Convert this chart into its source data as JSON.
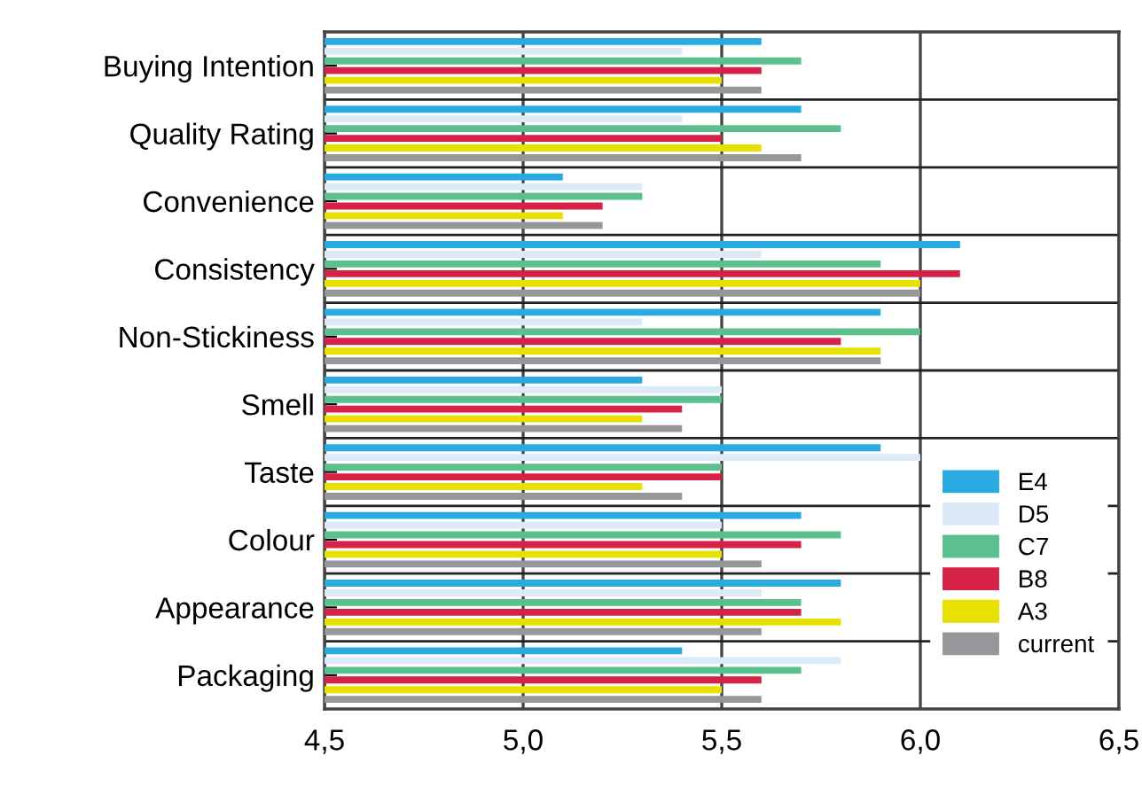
{
  "chart_data": {
    "type": "bar",
    "orientation": "horizontal",
    "categories": [
      "Buying Intention",
      "Quality Rating",
      "Convenience",
      "Consistency",
      "Non-Stickiness",
      "Smell",
      "Taste",
      "Colour",
      "Appearance",
      "Packaging"
    ],
    "series": [
      {
        "name": "E4",
        "color": "#29abe2",
        "values": [
          5.6,
          5.7,
          5.1,
          6.1,
          5.9,
          5.3,
          5.9,
          5.7,
          5.8,
          5.4
        ]
      },
      {
        "name": "D5",
        "color": "#dce9f7",
        "values": [
          5.4,
          5.4,
          5.3,
          5.6,
          5.3,
          5.5,
          6.0,
          5.5,
          5.6,
          5.8
        ]
      },
      {
        "name": "C7",
        "color": "#5bbf8e",
        "values": [
          5.7,
          5.8,
          5.3,
          5.9,
          6.0,
          5.5,
          5.5,
          5.8,
          5.7,
          5.7
        ]
      },
      {
        "name": "B8",
        "color": "#d62246",
        "values": [
          5.6,
          5.5,
          5.2,
          6.1,
          5.8,
          5.4,
          5.5,
          5.7,
          5.7,
          5.6
        ]
      },
      {
        "name": "A3",
        "color": "#e8e000",
        "values": [
          5.5,
          5.6,
          5.1,
          6.0,
          5.9,
          5.3,
          5.3,
          5.5,
          5.8,
          5.5
        ]
      },
      {
        "name": "current",
        "color": "#96979b",
        "values": [
          5.6,
          5.7,
          5.2,
          6.0,
          5.9,
          5.4,
          5.4,
          5.6,
          5.6,
          5.6
        ]
      }
    ],
    "xlim": [
      4.5,
      6.5
    ],
    "xticks": [
      {
        "value": 4.5,
        "label": "4,5"
      },
      {
        "value": 5.0,
        "label": "5,0"
      },
      {
        "value": 5.5,
        "label": "5,5"
      },
      {
        "value": 6.0,
        "label": "6,0"
      },
      {
        "value": 6.5,
        "label": "6,5"
      }
    ],
    "grid": true,
    "legend": "bottom right"
  }
}
